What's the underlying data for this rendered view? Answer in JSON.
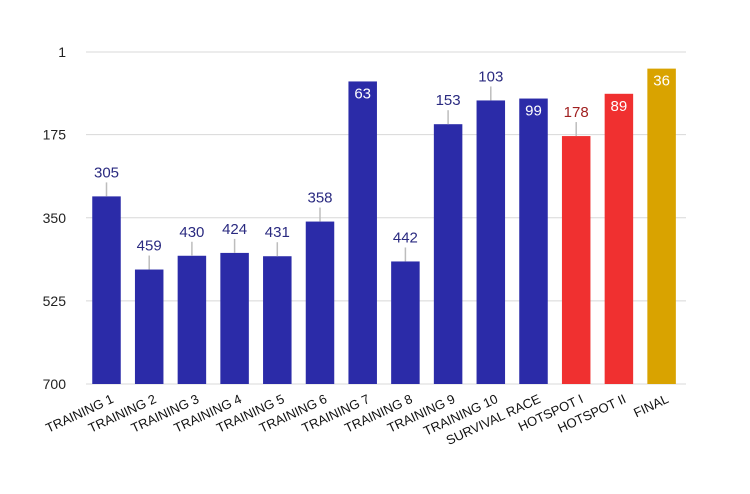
{
  "chart_data": {
    "type": "bar",
    "title": "",
    "xlabel": "",
    "ylabel": "",
    "y_reversed": true,
    "ylim": [
      1,
      700
    ],
    "yticks": [
      1,
      175,
      350,
      525,
      700
    ],
    "grid": true,
    "categories": [
      "TRAINING 1",
      "TRAINING 2",
      "TRAINING 3",
      "TRAINING 4",
      "TRAINING 5",
      "TRAINING 6",
      "TRAINING 7",
      "TRAINING 8",
      "TRAINING 9",
      "TRAINING 10",
      "SURVIVAL RACE",
      "HOTSPOT I",
      "HOTSPOT II",
      "FINAL"
    ],
    "values": [
      305,
      459,
      430,
      424,
      431,
      358,
      63,
      442,
      153,
      103,
      99,
      178,
      89,
      36
    ],
    "bar_colors": [
      "#2b2ba8",
      "#2b2ba8",
      "#2b2ba8",
      "#2b2ba8",
      "#2b2ba8",
      "#2b2ba8",
      "#2b2ba8",
      "#2b2ba8",
      "#2b2ba8",
      "#2b2ba8",
      "#2b2ba8",
      "#f03030",
      "#f03030",
      "#d9a300"
    ],
    "label_inside": [
      false,
      false,
      false,
      false,
      false,
      false,
      true,
      false,
      false,
      false,
      true,
      false,
      true,
      true
    ]
  }
}
